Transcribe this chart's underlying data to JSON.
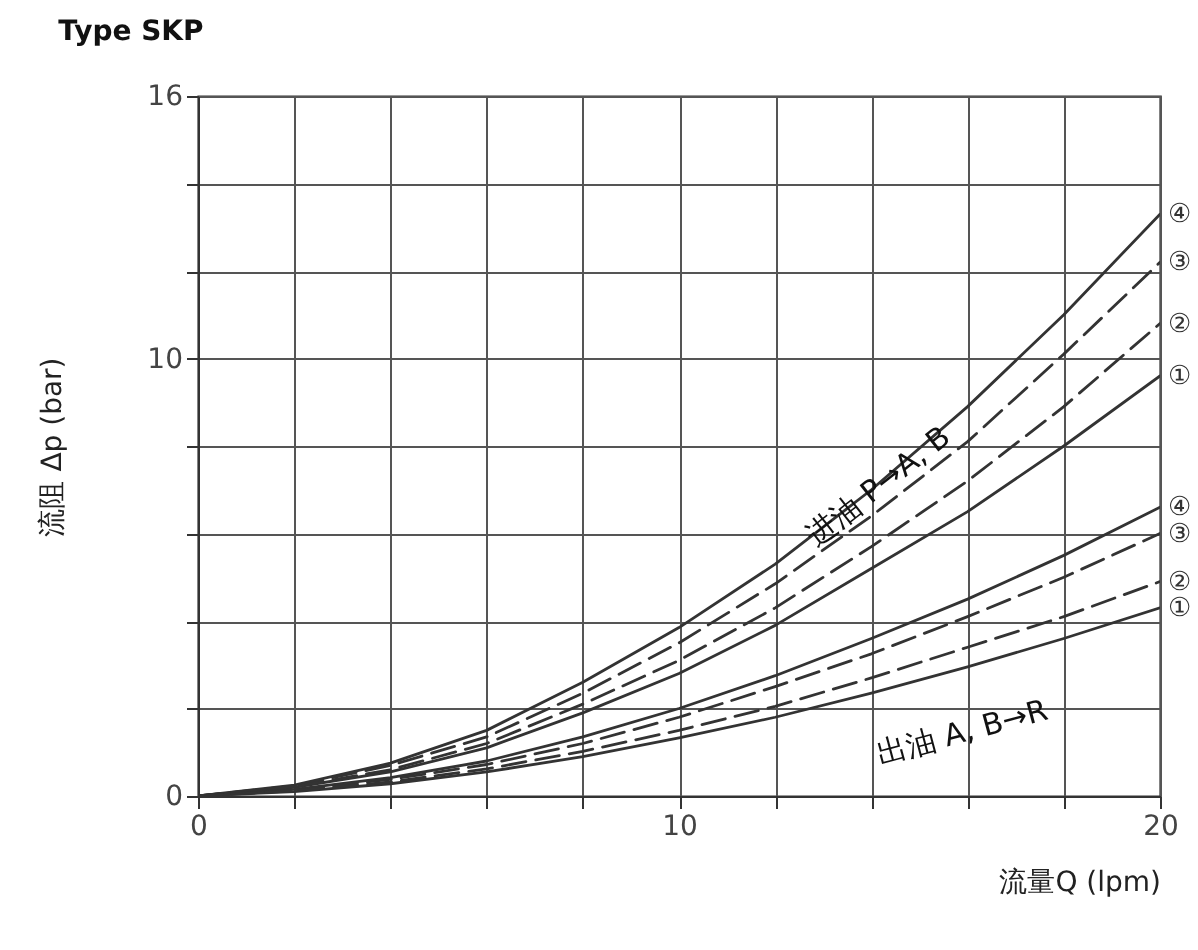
{
  "chart_data": {
    "type": "line",
    "title": "Type SKP",
    "xlabel": "流量Q (lpm)",
    "ylabel": "流阻 Δp (bar)",
    "x": [
      0,
      2,
      4,
      6,
      8,
      10,
      12,
      14,
      16,
      18,
      20
    ],
    "series": [
      {
        "name": "④",
        "color": "#333333",
        "line_style": "solid",
        "values": [
          0,
          0.25,
          0.75,
          1.5,
          2.6,
          3.85,
          5.3,
          7.0,
          8.9,
          11.0,
          13.3
        ]
      },
      {
        "name": "③",
        "color": "#333333",
        "line_style": "dashed",
        "values": [
          0,
          0.23,
          0.7,
          1.35,
          2.35,
          3.5,
          4.85,
          6.4,
          8.1,
          10.1,
          12.2
        ]
      },
      {
        "name": "②",
        "color": "#333333",
        "line_style": "dashed",
        "values": [
          0,
          0.21,
          0.6,
          1.2,
          2.1,
          3.1,
          4.3,
          5.7,
          7.2,
          8.9,
          10.8
        ]
      },
      {
        "name": "①",
        "color": "#333333",
        "line_style": "solid",
        "values": [
          0,
          0.2,
          0.55,
          1.1,
          1.9,
          2.8,
          3.9,
          5.2,
          6.5,
          8.0,
          9.6
        ]
      },
      {
        "name": "④",
        "color": "#333333",
        "line_style": "solid",
        "values": [
          0,
          0.15,
          0.42,
          0.8,
          1.35,
          2.0,
          2.75,
          3.6,
          4.5,
          5.5,
          6.6
        ]
      },
      {
        "name": "③",
        "color": "#333333",
        "line_style": "dashed",
        "values": [
          0,
          0.14,
          0.38,
          0.72,
          1.2,
          1.8,
          2.5,
          3.25,
          4.1,
          5.0,
          6.0
        ]
      },
      {
        "name": "②",
        "color": "#333333",
        "line_style": "dashed",
        "values": [
          0,
          0.12,
          0.32,
          0.62,
          1.02,
          1.5,
          2.05,
          2.7,
          3.4,
          4.1,
          4.9
        ]
      },
      {
        "name": "①",
        "color": "#333333",
        "line_style": "solid",
        "values": [
          0,
          0.1,
          0.28,
          0.55,
          0.9,
          1.33,
          1.8,
          2.35,
          2.95,
          3.6,
          4.3
        ]
      }
    ],
    "annotations": [
      "进油 P→A, B",
      "出油 A, B→R"
    ],
    "xlim": [
      0,
      20
    ],
    "ylim": [
      0,
      16
    ],
    "xticks": [
      0,
      {
        "value": 2,
        "label": null
      },
      {
        "value": 4,
        "label": null
      },
      {
        "value": 6,
        "label": null
      },
      {
        "value": 8,
        "label": null
      },
      10,
      {
        "value": 12,
        "label": null
      },
      {
        "value": 14,
        "label": null
      },
      {
        "value": 16,
        "label": null
      },
      {
        "value": 18,
        "label": null
      },
      20
    ],
    "yticks": [
      0,
      {
        "value": 2,
        "label": null
      },
      {
        "value": 4,
        "label": null
      },
      {
        "value": 6,
        "label": null
      },
      {
        "value": 8,
        "label": null
      },
      10,
      {
        "value": 12,
        "label": null
      },
      {
        "value": 14,
        "label": null
      },
      16
    ],
    "grid": true
  }
}
